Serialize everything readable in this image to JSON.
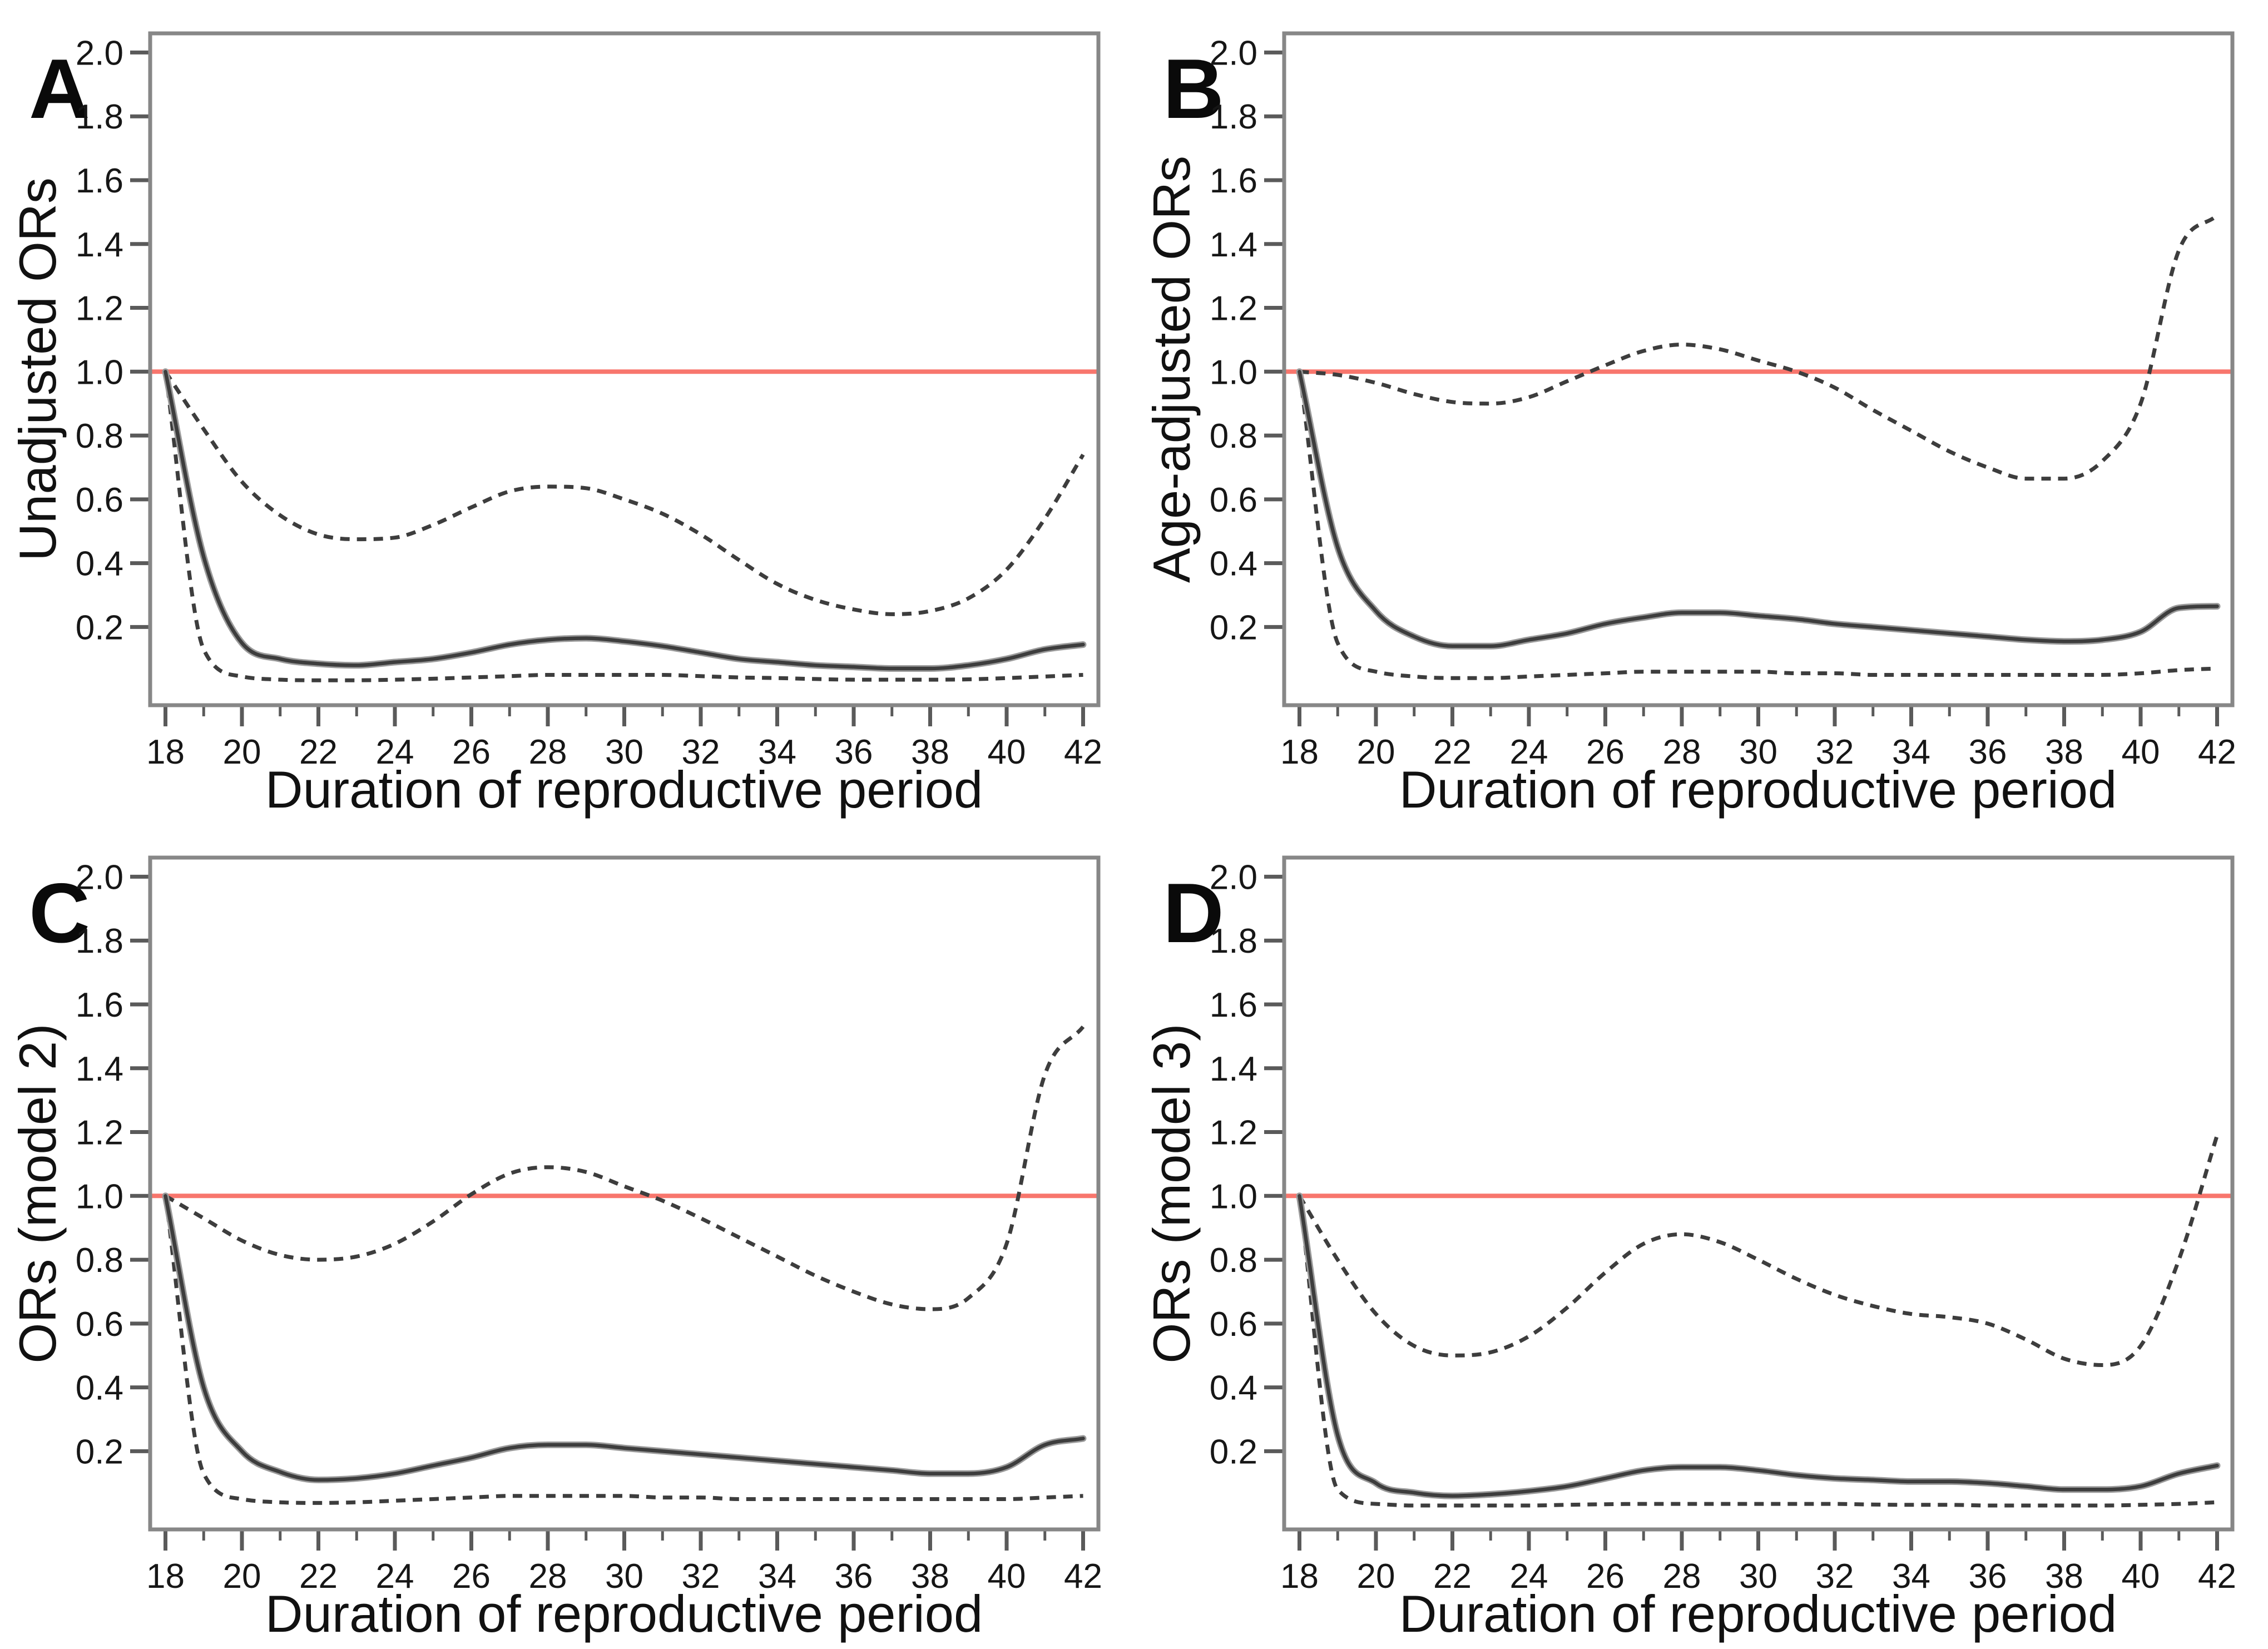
{
  "figure": {
    "background": "#ffffff",
    "panel_count": 4,
    "x_axis_label": "Duration of reproductive period",
    "x_ticks_major": [
      18,
      20,
      22,
      24,
      26,
      28,
      30,
      32,
      34,
      36,
      38,
      40,
      42
    ],
    "x_ticks_minor": [
      19,
      21,
      23,
      25,
      27,
      29,
      31,
      33,
      35,
      37,
      39,
      41
    ],
    "y_ticks": [
      0.2,
      0.4,
      0.6,
      0.8,
      1.0,
      1.2,
      1.4,
      1.6,
      1.8,
      2.0
    ],
    "colors": {
      "reference_line": "#f8766d",
      "curve": "#3d3d3d",
      "curve_halo": "#9a9a9a",
      "frame": "#878787",
      "tick": "#5a5a5a",
      "text": "#111111"
    }
  },
  "chart_data": [
    {
      "type": "line",
      "panel_label": "A",
      "ylabel": "Unadjusted ORs",
      "xlabel": "Duration of reproductive period",
      "xlim": [
        17.6,
        42.4
      ],
      "ylim": [
        -0.045,
        2.06
      ],
      "grid": false,
      "legend": "none",
      "reference_line_y": 1.0,
      "x": [
        18,
        19,
        20,
        21,
        22,
        23,
        24,
        25,
        26,
        27,
        28,
        29,
        30,
        31,
        32,
        33,
        34,
        35,
        36,
        37,
        38,
        39,
        40,
        41,
        42
      ],
      "series": [
        {
          "name": "upper-95ci",
          "style": "dashed",
          "values": [
            1.0,
            0.82,
            0.655,
            0.55,
            0.49,
            0.475,
            0.48,
            0.52,
            0.575,
            0.625,
            0.64,
            0.635,
            0.6,
            0.555,
            0.49,
            0.41,
            0.335,
            0.285,
            0.255,
            0.24,
            0.25,
            0.29,
            0.38,
            0.54,
            0.74
          ]
        },
        {
          "name": "lower-95ci",
          "style": "dashed",
          "values": [
            1.0,
            0.13,
            0.045,
            0.035,
            0.033,
            0.033,
            0.035,
            0.038,
            0.042,
            0.046,
            0.05,
            0.05,
            0.05,
            0.05,
            0.046,
            0.042,
            0.04,
            0.037,
            0.035,
            0.035,
            0.035,
            0.036,
            0.04,
            0.045,
            0.05
          ]
        },
        {
          "name": "estimate",
          "style": "solid",
          "values": [
            1.0,
            0.42,
            0.15,
            0.1,
            0.085,
            0.08,
            0.09,
            0.1,
            0.12,
            0.145,
            0.16,
            0.165,
            0.155,
            0.14,
            0.12,
            0.1,
            0.09,
            0.08,
            0.075,
            0.07,
            0.07,
            0.08,
            0.1,
            0.13,
            0.145
          ]
        }
      ]
    },
    {
      "type": "line",
      "panel_label": "B",
      "ylabel": "Age-adjusted ORs",
      "xlabel": "Duration of reproductive period",
      "xlim": [
        17.6,
        42.4
      ],
      "ylim": [
        -0.045,
        2.06
      ],
      "grid": false,
      "legend": "none",
      "reference_line_y": 1.0,
      "x": [
        18,
        19,
        20,
        21,
        22,
        23,
        24,
        25,
        26,
        27,
        28,
        29,
        30,
        31,
        32,
        33,
        34,
        35,
        36,
        37,
        38,
        39,
        40,
        41,
        42
      ],
      "series": [
        {
          "name": "upper-95ci",
          "style": "dashed",
          "values": [
            1.0,
            0.99,
            0.965,
            0.93,
            0.905,
            0.9,
            0.92,
            0.97,
            1.02,
            1.065,
            1.085,
            1.07,
            1.035,
            1.0,
            0.95,
            0.88,
            0.815,
            0.75,
            0.7,
            0.665,
            0.665,
            0.72,
            0.9,
            1.38,
            1.49
          ]
        },
        {
          "name": "lower-95ci",
          "style": "dashed",
          "values": [
            1.0,
            0.15,
            0.06,
            0.045,
            0.04,
            0.04,
            0.045,
            0.05,
            0.055,
            0.06,
            0.06,
            0.06,
            0.06,
            0.055,
            0.055,
            0.05,
            0.05,
            0.05,
            0.05,
            0.05,
            0.05,
            0.05,
            0.055,
            0.065,
            0.07
          ]
        },
        {
          "name": "estimate",
          "style": "solid",
          "values": [
            1.0,
            0.45,
            0.25,
            0.17,
            0.14,
            0.14,
            0.16,
            0.18,
            0.21,
            0.23,
            0.245,
            0.245,
            0.235,
            0.225,
            0.21,
            0.2,
            0.19,
            0.18,
            0.17,
            0.16,
            0.155,
            0.16,
            0.185,
            0.26,
            0.265
          ]
        }
      ]
    },
    {
      "type": "line",
      "panel_label": "C",
      "ylabel": "ORs (model 2)",
      "xlabel": "Duration of reproductive period",
      "xlim": [
        17.6,
        42.4
      ],
      "ylim": [
        -0.045,
        2.06
      ],
      "grid": false,
      "legend": "none",
      "reference_line_y": 1.0,
      "x": [
        18,
        19,
        20,
        21,
        22,
        23,
        24,
        25,
        26,
        27,
        28,
        29,
        30,
        31,
        32,
        33,
        34,
        35,
        36,
        37,
        38,
        39,
        40,
        41,
        42
      ],
      "series": [
        {
          "name": "upper-95ci",
          "style": "dashed",
          "values": [
            1.0,
            0.93,
            0.86,
            0.815,
            0.8,
            0.81,
            0.85,
            0.92,
            1.005,
            1.07,
            1.09,
            1.075,
            1.03,
            0.985,
            0.93,
            0.87,
            0.81,
            0.75,
            0.7,
            0.66,
            0.645,
            0.68,
            0.85,
            1.38,
            1.53
          ]
        },
        {
          "name": "lower-95ci",
          "style": "dashed",
          "values": [
            1.0,
            0.13,
            0.05,
            0.04,
            0.038,
            0.04,
            0.045,
            0.05,
            0.055,
            0.06,
            0.06,
            0.06,
            0.06,
            0.055,
            0.055,
            0.05,
            0.05,
            0.05,
            0.05,
            0.05,
            0.05,
            0.05,
            0.05,
            0.055,
            0.06
          ]
        },
        {
          "name": "estimate",
          "style": "solid",
          "values": [
            1.0,
            0.4,
            0.2,
            0.135,
            0.11,
            0.115,
            0.13,
            0.155,
            0.18,
            0.21,
            0.22,
            0.22,
            0.21,
            0.2,
            0.19,
            0.18,
            0.17,
            0.16,
            0.15,
            0.14,
            0.13,
            0.13,
            0.15,
            0.22,
            0.24
          ]
        }
      ]
    },
    {
      "type": "line",
      "panel_label": "D",
      "ylabel": "ORs (model 3)",
      "xlabel": "Duration of reproductive period",
      "xlim": [
        17.6,
        42.4
      ],
      "ylim": [
        -0.045,
        2.06
      ],
      "grid": false,
      "legend": "none",
      "reference_line_y": 1.0,
      "x": [
        18,
        19,
        20,
        21,
        22,
        23,
        24,
        25,
        26,
        27,
        28,
        29,
        30,
        31,
        32,
        33,
        34,
        35,
        36,
        37,
        38,
        39,
        40,
        41,
        42
      ],
      "series": [
        {
          "name": "upper-95ci",
          "style": "dashed",
          "values": [
            1.0,
            0.8,
            0.63,
            0.53,
            0.5,
            0.51,
            0.56,
            0.65,
            0.76,
            0.85,
            0.88,
            0.855,
            0.8,
            0.74,
            0.69,
            0.655,
            0.63,
            0.62,
            0.6,
            0.55,
            0.49,
            0.47,
            0.53,
            0.8,
            1.19
          ]
        },
        {
          "name": "lower-95ci",
          "style": "dashed",
          "values": [
            1.0,
            0.08,
            0.035,
            0.03,
            0.03,
            0.03,
            0.03,
            0.032,
            0.034,
            0.035,
            0.035,
            0.035,
            0.035,
            0.035,
            0.035,
            0.033,
            0.032,
            0.032,
            0.03,
            0.03,
            0.03,
            0.03,
            0.032,
            0.035,
            0.04
          ]
        },
        {
          "name": "estimate",
          "style": "solid",
          "values": [
            1.0,
            0.25,
            0.1,
            0.07,
            0.06,
            0.065,
            0.075,
            0.09,
            0.115,
            0.14,
            0.15,
            0.15,
            0.14,
            0.125,
            0.115,
            0.11,
            0.105,
            0.105,
            0.1,
            0.09,
            0.08,
            0.08,
            0.09,
            0.13,
            0.155
          ]
        }
      ]
    }
  ]
}
